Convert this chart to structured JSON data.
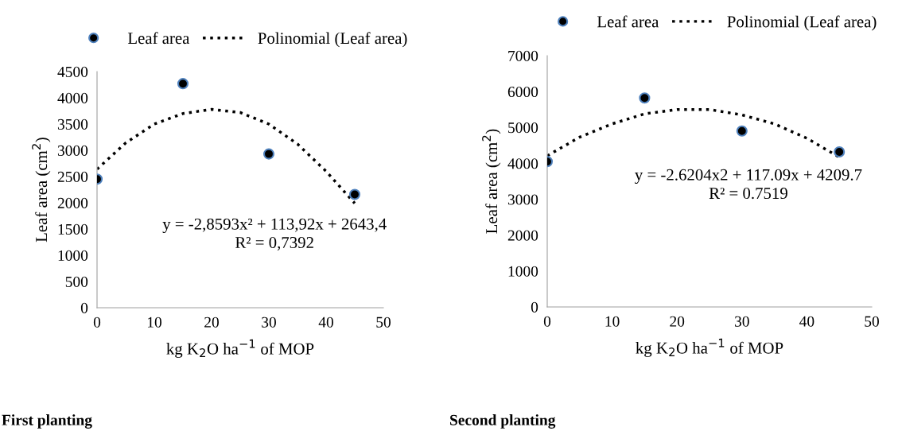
{
  "chart_data": [
    {
      "type": "scatter",
      "title": "First planting",
      "xlabel": "kg K$_{2}$O ha$^{−1}$ of MOP",
      "ylabel": "Leaf area (cm$^{2}$)",
      "x": [
        0,
        15,
        30,
        45
      ],
      "series": [
        {
          "name": "Leaf area",
          "color": "#000000",
          "values": [
            2450,
            4270,
            2930,
            2160
          ]
        },
        {
          "name": "Polinomial (Leaf area)",
          "type": "line",
          "color": "#000000",
          "line_style": "dotted",
          "marker": "none",
          "x": [
            0,
            5,
            10,
            15,
            20,
            25,
            30,
            35,
            40,
            45
          ],
          "values": [
            2640,
            3140,
            3500,
            3700,
            3780,
            3720,
            3500,
            3120,
            2600,
            1990
          ]
        }
      ],
      "annotations": [
        "y = -2,8593x² + 113,92x + 2643,4",
        "R² = 0,7392"
      ],
      "xlim": [
        0,
        50
      ],
      "xticks": [
        0,
        10,
        20,
        30,
        40,
        50
      ],
      "ylim": [
        0,
        4500
      ],
      "yticks": [
        0,
        500,
        1000,
        1500,
        2000,
        2500,
        3000,
        3500,
        4000,
        4500
      ],
      "marker": "circle",
      "grid": false,
      "legend": "top"
    },
    {
      "type": "scatter",
      "title": "Second planting",
      "xlabel": "kg K$_{2}$O ha$^{−1}$ of MOP",
      "ylabel": "Leaf area (cm$^{2}$)",
      "x": [
        0,
        15,
        30,
        45
      ],
      "series": [
        {
          "name": "Leaf area",
          "color": "#000000",
          "values": [
            4050,
            5820,
            4900,
            4320
          ]
        },
        {
          "name": "Polinomial (Leaf area)",
          "type": "line",
          "color": "#000000",
          "line_style": "dotted",
          "marker": "none",
          "x": [
            0,
            5,
            10,
            15,
            20,
            25,
            30,
            35,
            40,
            45
          ],
          "values": [
            4210,
            4730,
            5100,
            5380,
            5500,
            5500,
            5350,
            5100,
            4700,
            4170
          ]
        }
      ],
      "annotations": [
        "y = -2.6204x2 + 117.09x + 4209.7",
        "R² = 0.7519"
      ],
      "xlim": [
        0,
        50
      ],
      "xticks": [
        0,
        10,
        20,
        30,
        40,
        50
      ],
      "ylim": [
        0,
        7000
      ],
      "yticks": [
        0,
        1000,
        2000,
        3000,
        4000,
        5000,
        6000,
        7000
      ],
      "marker": "circle",
      "grid": false,
      "legend": "top"
    }
  ]
}
